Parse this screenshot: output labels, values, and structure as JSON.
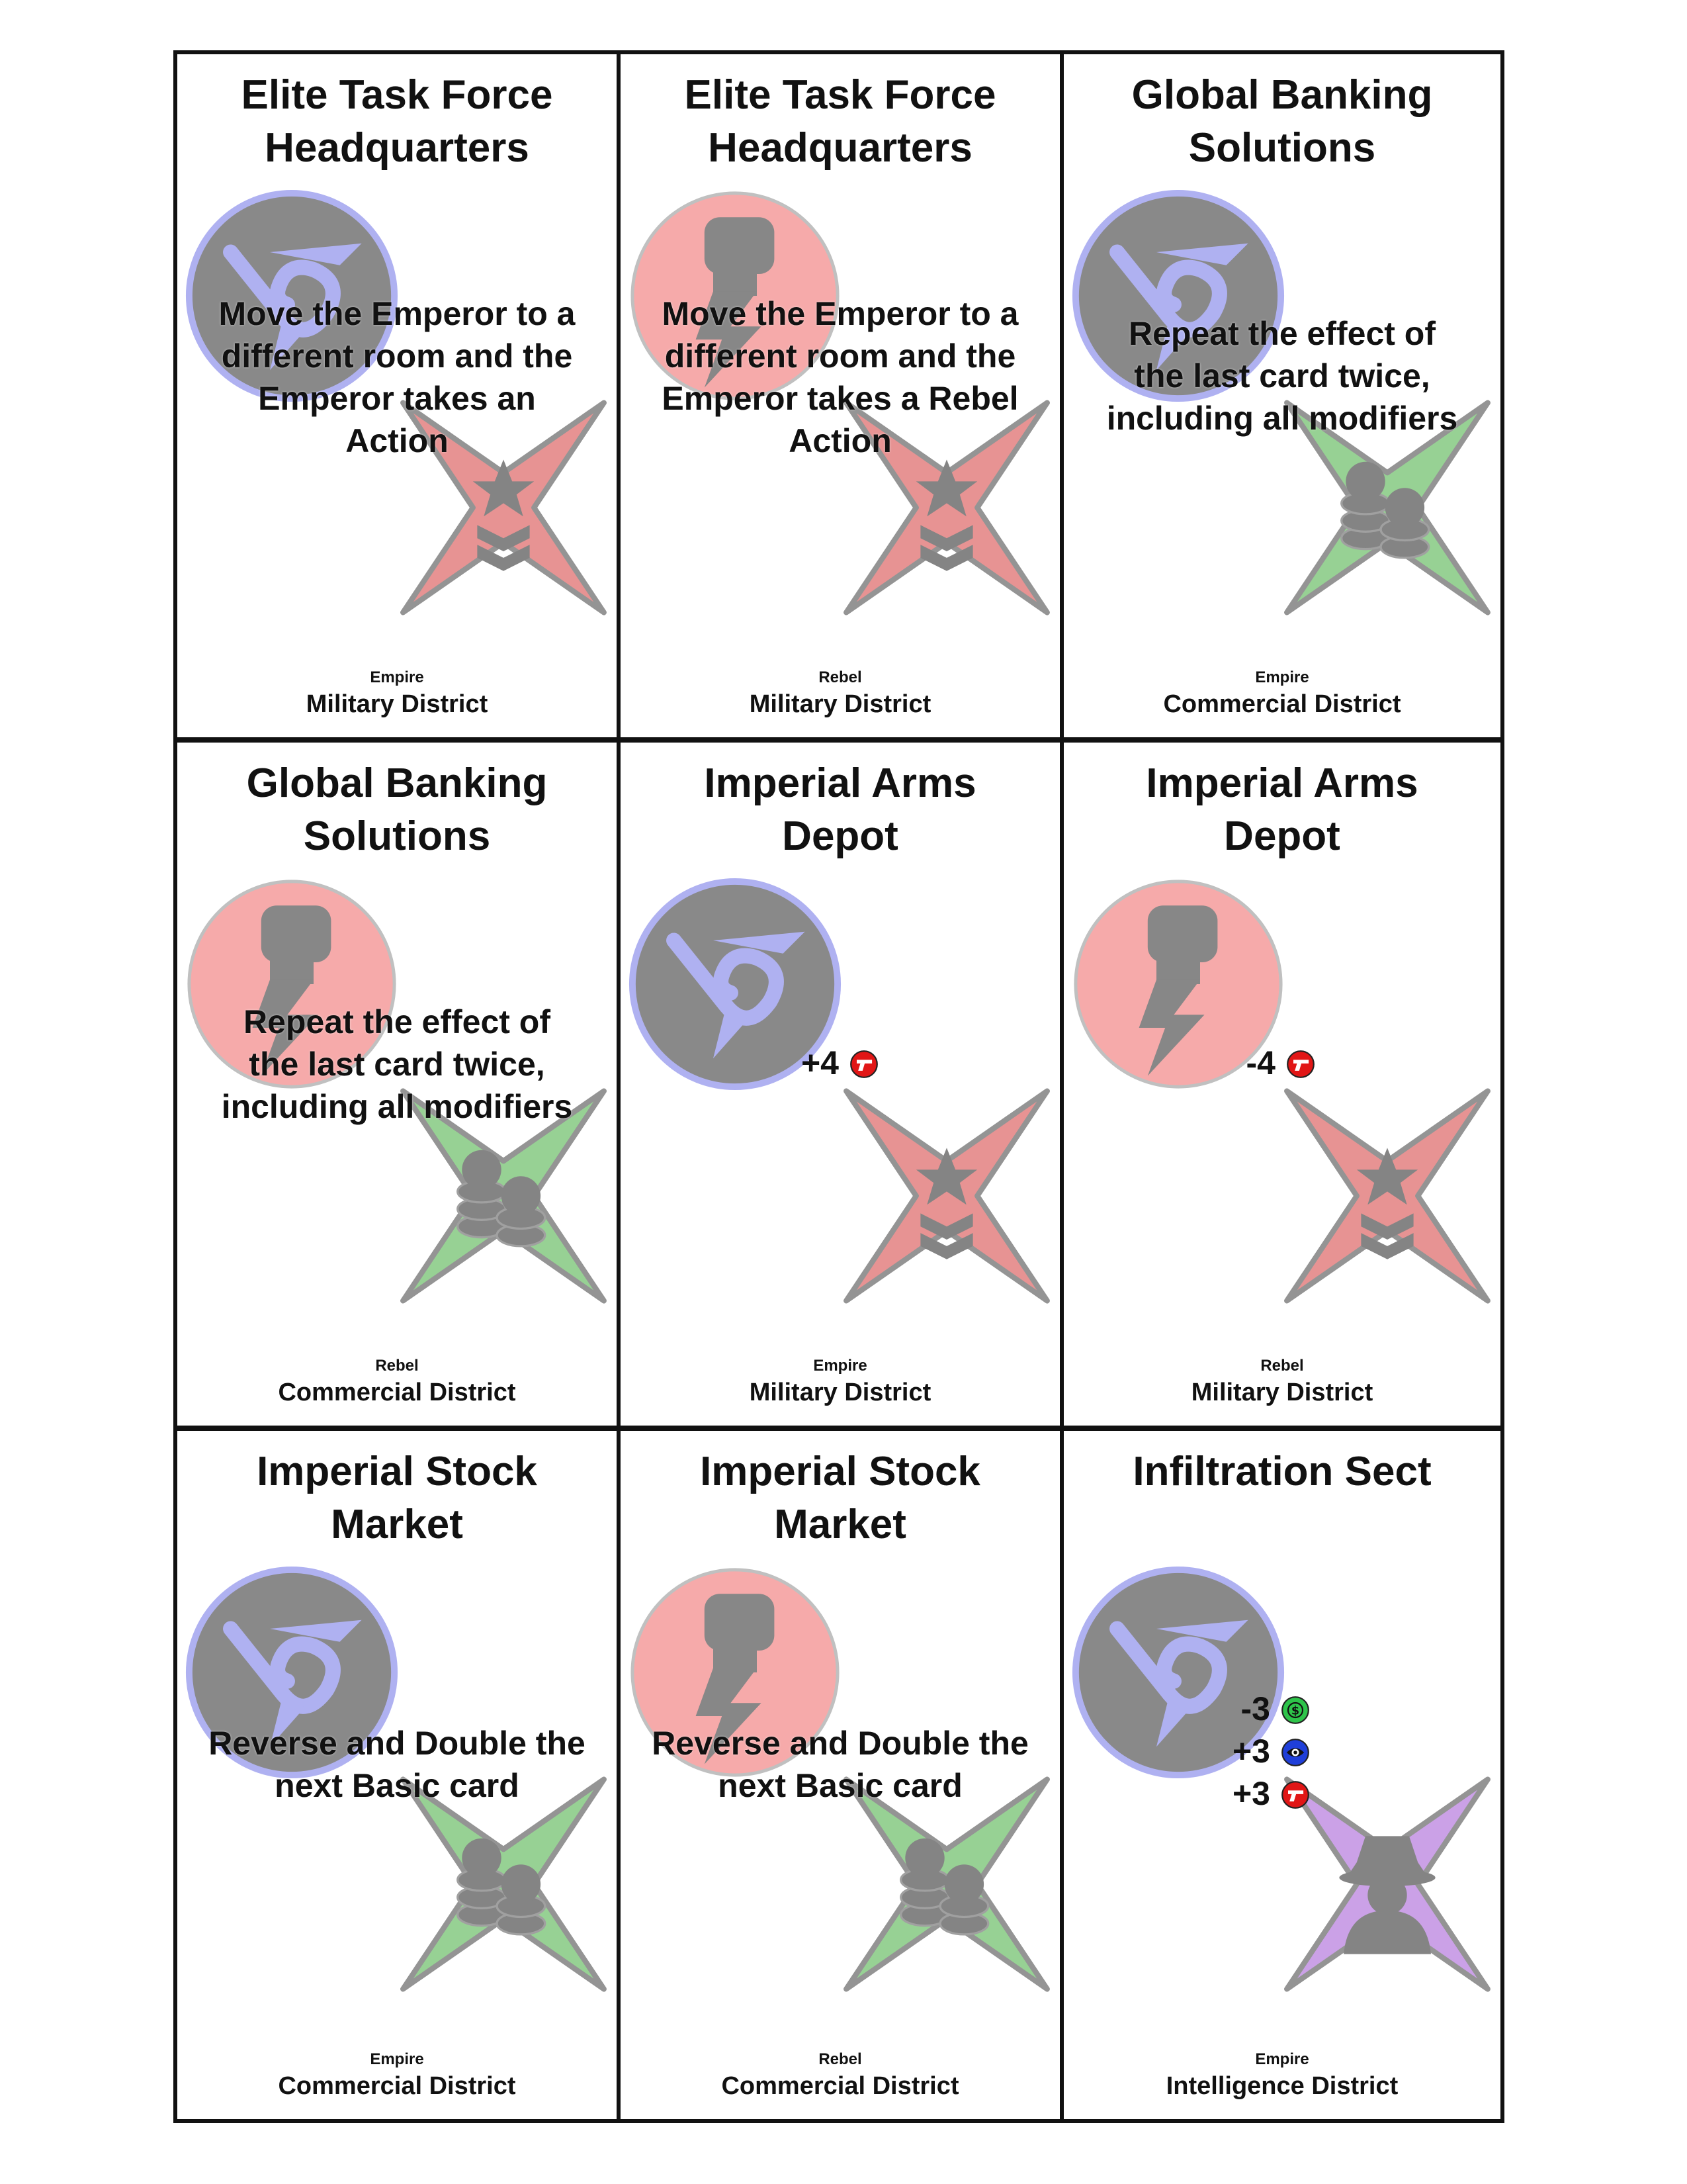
{
  "cards": [
    {
      "title_lines": [
        "Elite Task Force",
        "Headquarters"
      ],
      "faction": "Empire",
      "faction_icon": "empire-emblem-icon",
      "district": "Military District",
      "district_icon": "military-district-icon",
      "effect_lines": [
        "Move the Emperor to a",
        "different room and the",
        "Emperor takes an",
        "Action"
      ],
      "modifiers": []
    },
    {
      "title_lines": [
        "Elite Task Force",
        "Headquarters"
      ],
      "faction": "Rebel",
      "faction_icon": "rebel-fist-icon",
      "district": "Military District",
      "district_icon": "military-district-icon",
      "effect_lines": [
        "Move the Emperor to a",
        "different room and the",
        "Emperor takes a Rebel",
        "Action"
      ],
      "modifiers": []
    },
    {
      "title_lines": [
        "Global Banking",
        "Solutions"
      ],
      "faction": "Empire",
      "faction_icon": "empire-emblem-icon",
      "district": "Commercial District",
      "district_icon": "commercial-district-icon",
      "effect_lines": [
        "Repeat the effect of",
        "the last card twice,",
        "including all modifiers"
      ],
      "modifiers": []
    },
    {
      "title_lines": [
        "Global Banking",
        "Solutions"
      ],
      "faction": "Rebel",
      "faction_icon": "rebel-fist-icon",
      "district": "Commercial District",
      "district_icon": "commercial-district-icon",
      "effect_lines": [
        "Repeat the effect of",
        "the last card twice,",
        "including all modifiers"
      ],
      "modifiers": []
    },
    {
      "title_lines": [
        "Imperial Arms",
        "Depot"
      ],
      "faction": "Empire",
      "faction_icon": "empire-emblem-icon",
      "district": "Military District",
      "district_icon": "military-district-icon",
      "effect_lines": [],
      "modifiers": [
        {
          "value": "+4",
          "icon": "gun-icon"
        }
      ]
    },
    {
      "title_lines": [
        "Imperial Arms",
        "Depot"
      ],
      "faction": "Rebel",
      "faction_icon": "rebel-fist-icon",
      "district": "Military District",
      "district_icon": "military-district-icon",
      "effect_lines": [],
      "modifiers": [
        {
          "value": "-4",
          "icon": "gun-icon"
        }
      ]
    },
    {
      "title_lines": [
        "Imperial Stock",
        "Market"
      ],
      "faction": "Empire",
      "faction_icon": "empire-emblem-icon",
      "district": "Commercial District",
      "district_icon": "commercial-district-icon",
      "effect_lines": [
        "Reverse and Double the",
        "next Basic card"
      ],
      "modifiers": []
    },
    {
      "title_lines": [
        "Imperial Stock",
        "Market"
      ],
      "faction": "Rebel",
      "faction_icon": "rebel-fist-icon",
      "district": "Commercial District",
      "district_icon": "commercial-district-icon",
      "effect_lines": [
        "Reverse and Double the",
        "next Basic card"
      ],
      "modifiers": []
    },
    {
      "title_lines": [
        "Infiltration Sect"
      ],
      "faction": "Empire",
      "faction_icon": "empire-emblem-icon",
      "district": "Intelligence District",
      "district_icon": "intelligence-district-icon",
      "effect_lines": [],
      "modifiers": [
        {
          "value": "-3",
          "icon": "money-icon"
        },
        {
          "value": "+3",
          "icon": "eye-icon"
        },
        {
          "value": "+3",
          "icon": "gun-icon"
        }
      ]
    }
  ],
  "colors": {
    "border": "#111111",
    "empire_disc": "#808080",
    "empire_ring": "#a9abf0",
    "rebel_disc": "#f6a3a3",
    "rebel_mark": "#7d7d7d",
    "military_star": "#e58a8a",
    "commercial_star": "#8fce8c",
    "intelligence_star": "#c79ae6",
    "money_icon": "#2ec44a",
    "eye_icon": "#1f3fd9",
    "gun_icon": "#e11616"
  }
}
